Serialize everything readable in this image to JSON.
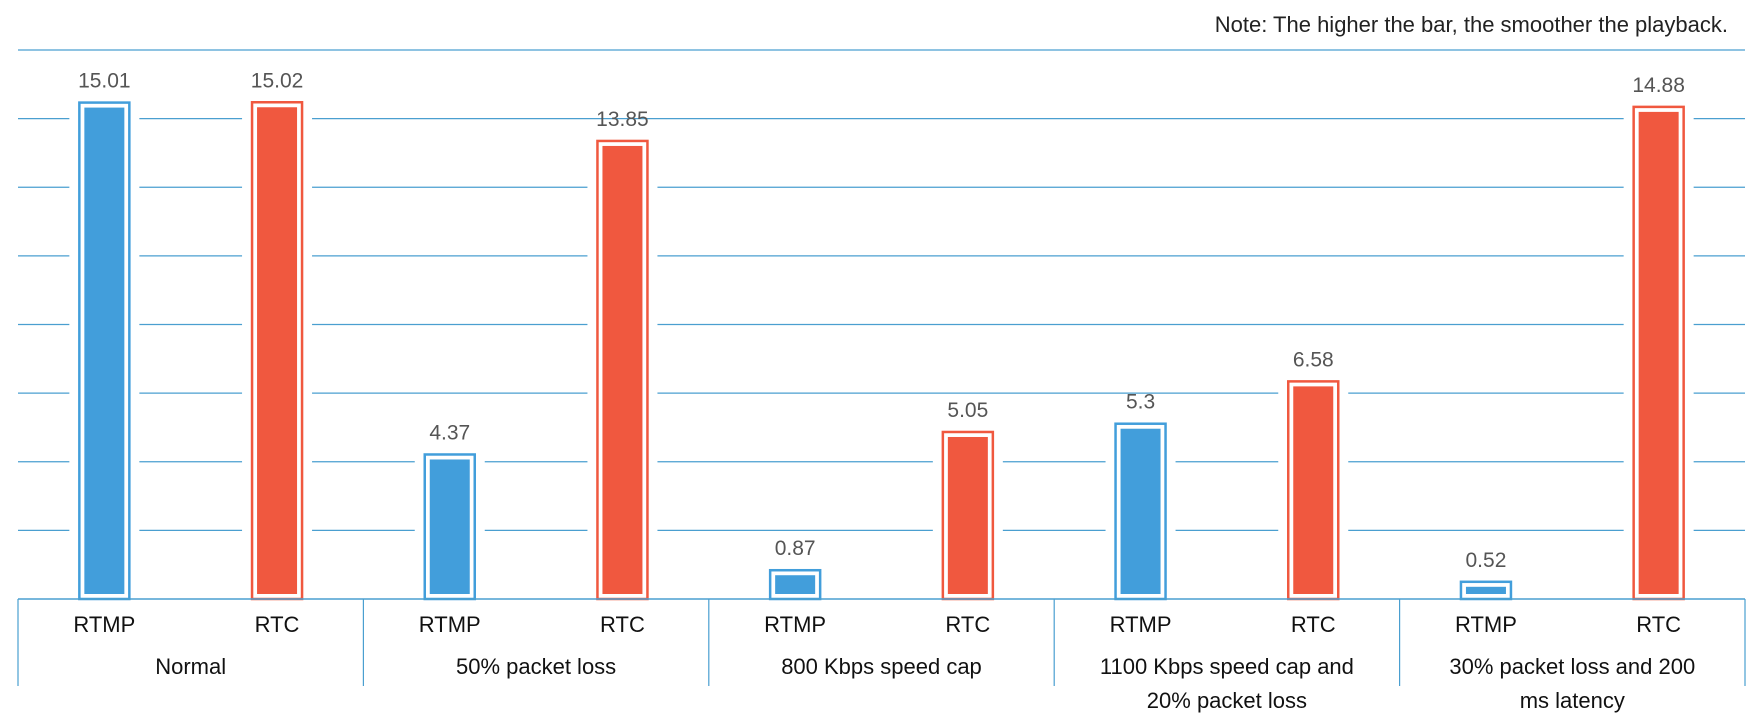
{
  "note": "Note: The higher the bar, the smoother the playback.",
  "colors": {
    "rtmp": "#429EDB",
    "rtc": "#F0583F",
    "grid": "#4A9FD0"
  },
  "chart_data": {
    "type": "bar",
    "title": "",
    "xlabel": "",
    "ylabel": "",
    "ylim": [
      0,
      16.6
    ],
    "grid": true,
    "groups": [
      {
        "label_lines": [
          "Normal"
        ],
        "bars": [
          {
            "label": "RTMP",
            "value": 15.01
          },
          {
            "label": "RTC",
            "value": 15.02
          }
        ]
      },
      {
        "label_lines": [
          "50% packet loss"
        ],
        "bars": [
          {
            "label": "RTMP",
            "value": 4.37
          },
          {
            "label": "RTC",
            "value": 13.85
          }
        ]
      },
      {
        "label_lines": [
          "800 Kbps speed cap"
        ],
        "bars": [
          {
            "label": "RTMP",
            "value": 0.87
          },
          {
            "label": "RTC",
            "value": 5.05
          }
        ]
      },
      {
        "label_lines": [
          "1100 Kbps speed cap and",
          "20% packet loss"
        ],
        "bars": [
          {
            "label": "RTMP",
            "value": 5.3
          },
          {
            "label": "RTC",
            "value": 6.58
          }
        ]
      },
      {
        "label_lines": [
          "30% packet loss and 200",
          "ms latency"
        ],
        "bars": [
          {
            "label": "RTMP",
            "value": 0.52
          },
          {
            "label": "RTC",
            "value": 14.88
          }
        ]
      }
    ]
  }
}
